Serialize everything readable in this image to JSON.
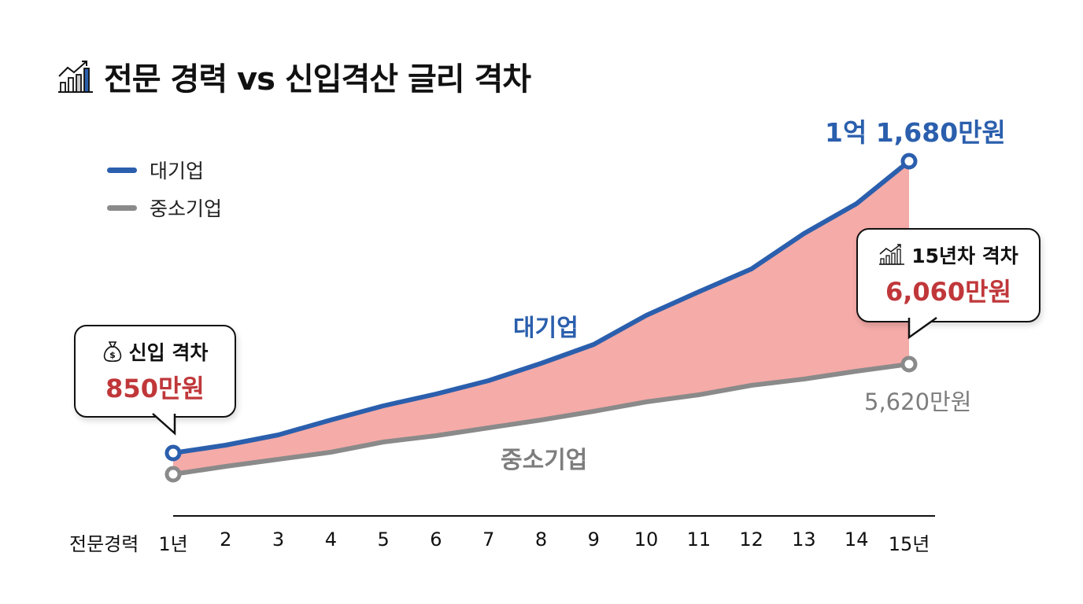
{
  "title": {
    "icon": "bar-chart-trend-icon",
    "text": "전문 경력 vs 신입격산 글리 격차"
  },
  "legend": [
    {
      "label": "대기업",
      "color": "#2b5fad"
    },
    {
      "label": "중소기업",
      "color": "#8a8a8a"
    }
  ],
  "colors": {
    "large": "#2b5fad",
    "small": "#8a8a8a",
    "gap_fill": "#f4a6a3",
    "highlight": "#c0373a"
  },
  "annotations": {
    "large_end_value": "1억 1,680만원",
    "small_end_value": "5,620만원",
    "large_series_label": "대기업",
    "small_series_label": "중소기업"
  },
  "callouts": {
    "entry": {
      "icon": "money-bag-icon",
      "title": "신입 격차",
      "value": "850만원"
    },
    "year15": {
      "icon": "bar-chart-trend-icon",
      "title": "15년차 격차",
      "value": "6,060만원"
    }
  },
  "x_axis": {
    "title": "전문경력",
    "ticks": [
      "1년",
      "2",
      "3",
      "4",
      "5",
      "6",
      "7",
      "8",
      "9",
      "10",
      "11",
      "12",
      "13",
      "14",
      "15년"
    ]
  },
  "chart_data": {
    "type": "line",
    "title": "전문 경력 vs 신입격산 글리 격차",
    "xlabel": "전문경력",
    "ylabel": "",
    "categories": [
      "1년",
      "2",
      "3",
      "4",
      "5",
      "6",
      "7",
      "8",
      "9",
      "10",
      "11",
      "12",
      "13",
      "14",
      "15년"
    ],
    "series": [
      {
        "name": "대기업",
        "unit": "만원",
        "values": [
          3200,
          3430,
          3740,
          4180,
          4600,
          4960,
          5360,
          5880,
          6440,
          7310,
          8010,
          8690,
          9750,
          10640,
          11680
        ]
      },
      {
        "name": "중소기업",
        "unit": "만원",
        "values": [
          2350,
          2580,
          2800,
          3010,
          3320,
          3500,
          3740,
          3970,
          4230,
          4520,
          4730,
          5010,
          5200,
          5430,
          5620
        ]
      }
    ],
    "gap_area": {
      "fill": "#f4a6a3",
      "start_gap": 850,
      "end_gap": 6060
    },
    "labeled_points": [
      {
        "series": "대기업",
        "x": "15년",
        "label": "1억 1,680만원"
      },
      {
        "series": "중소기업",
        "x": "15년",
        "label": "5,620만원"
      }
    ],
    "grid": false,
    "legend_position": "top-left"
  }
}
